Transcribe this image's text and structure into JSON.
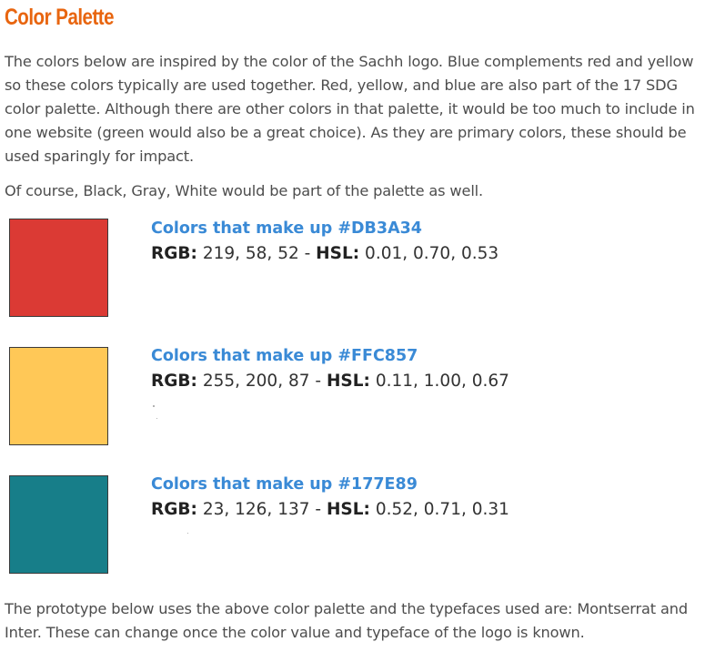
{
  "title": "Color Palette",
  "intro": "The colors below are inspired by the color of the Sachh logo. Blue complements red and yellow so these colors typically are used together. Red, yellow, and blue are also part of the 17 SDG color palette. Although there are other colors in that palette, it would be too much to include in one website (green would also be a great choice). As they are primary colors, these should be used sparingly for impact.",
  "note": "Of course, Black, Gray, White would be part of the palette as well.",
  "swatches": [
    {
      "heading": "Colors that make up #DB3A34",
      "color": "#DB3A34",
      "rgb_label": "RGB:",
      "rgb_value": " 219, 58, 52 - ",
      "hsl_label": "HSL:",
      "hsl_value": " 0.01, 0.70, 0.53"
    },
    {
      "heading": "Colors that make up #FFC857",
      "color": "#FFC857",
      "rgb_label": "RGB:",
      "rgb_value": " 255, 200, 87 - ",
      "hsl_label": "HSL:",
      "hsl_value": " 0.11, 1.00, 0.67"
    },
    {
      "heading": "Colors that make up #177E89",
      "color": "#177E89",
      "rgb_label": "RGB:",
      "rgb_value": " 23, 126, 137 - ",
      "hsl_label": "HSL:",
      "hsl_value": " 0.52, 0.71, 0.31"
    }
  ],
  "outro": "The prototype below uses the above color palette and the typefaces used are: Montserrat and Inter. These can change once the color value and typeface of the logo is known.",
  "colors": {
    "title": "#E8650F",
    "heading": "#3A8AD6",
    "body_text": "#4D4D4D"
  }
}
